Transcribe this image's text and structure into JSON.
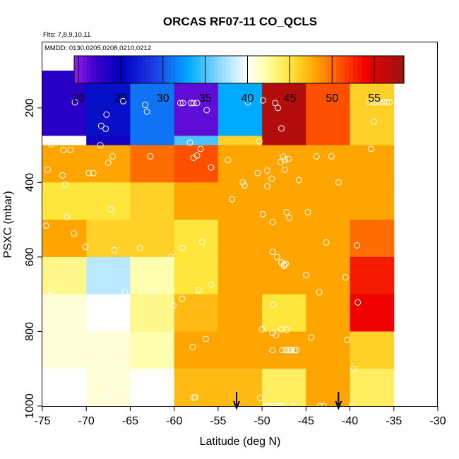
{
  "chart_data": {
    "type": "heatmap",
    "title": "ORCAS RF07-11 CO_QCLS",
    "flights_note": "Flts: 7,8,9,10,11",
    "dates_note": "MMDD: 0130,0205,0208,0210,0212",
    "xlabel": "Latitude (deg N)",
    "ylabel": "PSXC (mbar)",
    "xlim": [
      -75,
      -30
    ],
    "ylim": [
      1000,
      100
    ],
    "x_ticks": [
      "-75",
      "-70",
      "-65",
      "-60",
      "-55",
      "-50",
      "-45",
      "-40",
      "-35",
      "-30"
    ],
    "y_ticks": [
      "200",
      "400",
      "600",
      "800",
      "1000"
    ],
    "colorbar": {
      "range": [
        19.5,
        58.5
      ],
      "ticks": [
        "20",
        "25",
        "30",
        "35",
        "40",
        "45",
        "50",
        "55"
      ]
    },
    "lat_edges": [
      -75,
      -70,
      -65,
      -60,
      -55,
      -50,
      -45,
      -40,
      -35
    ],
    "pressure_bands": [
      {
        "top": 100,
        "bottom": 275,
        "values": [
          23,
          26,
          31,
          21,
          33,
          57,
          51,
          46
        ]
      },
      {
        "top": 275,
        "bottom": 300,
        "values": [
          40,
          24,
          31,
          35,
          46,
          57,
          51,
          46
        ]
      },
      {
        "top": 300,
        "bottom": 400,
        "values": [
          48,
          48,
          50,
          51,
          48,
          48,
          48,
          48
        ]
      },
      {
        "top": 400,
        "bottom": 500,
        "values": [
          45,
          45,
          46,
          48,
          48,
          48,
          48,
          48
        ]
      },
      {
        "top": 500,
        "bottom": 600,
        "values": [
          48,
          46,
          46,
          45,
          48,
          48,
          48,
          50
        ]
      },
      {
        "top": 600,
        "bottom": 700,
        "values": [
          43,
          38,
          42,
          45,
          48,
          48,
          48,
          53
        ]
      },
      {
        "top": 700,
        "bottom": 800,
        "values": [
          41,
          40,
          43,
          47,
          48,
          45,
          48,
          54
        ]
      },
      {
        "top": 800,
        "bottom": 900,
        "values": [
          41,
          41,
          42,
          48,
          48,
          48,
          48,
          46
        ]
      },
      {
        "top": 900,
        "bottom": 1000,
        "values": [
          40,
          41,
          40,
          47,
          47,
          44,
          48,
          44
        ]
      }
    ],
    "blank_cells": [
      {
        "lat_range": [
          -75,
          -60
        ],
        "p_range": [
          975,
          1000
        ]
      },
      {
        "lat_range": [
          -35,
          -30
        ],
        "p_range": [
          100,
          1000
        ]
      }
    ],
    "observations": [
      [
        -71.3,
        185
      ],
      [
        -68.3,
        248
      ],
      [
        -67.8,
        256
      ],
      [
        -67.7,
        218
      ],
      [
        -65.8,
        182
      ],
      [
        -63.3,
        192
      ],
      [
        -63.1,
        210
      ],
      [
        -59.3,
        187
      ],
      [
        -59,
        187
      ],
      [
        -58.1,
        187
      ],
      [
        -57.8,
        187
      ],
      [
        -57.4,
        187
      ],
      [
        -56.3,
        206
      ],
      [
        -51.6,
        185
      ],
      [
        -49.9,
        180
      ],
      [
        -48.5,
        187
      ],
      [
        -48.2,
        200
      ],
      [
        -47.8,
        255
      ],
      [
        -37.3,
        237
      ],
      [
        -37.8,
        185
      ],
      [
        -37.3,
        185
      ],
      [
        -37,
        185
      ],
      [
        -36.6,
        185
      ],
      [
        -36.2,
        185
      ],
      [
        -35.8,
        185
      ],
      [
        -35.5,
        185
      ],
      [
        -68.4,
        300
      ],
      [
        -58.2,
        293
      ],
      [
        -57.4,
        328
      ],
      [
        -57.8,
        334
      ],
      [
        -50.3,
        290
      ],
      [
        -47.9,
        345
      ],
      [
        -47.6,
        331
      ],
      [
        -47.4,
        340
      ],
      [
        -74,
        298
      ],
      [
        -72.6,
        313
      ],
      [
        -71.8,
        313
      ],
      [
        -67,
        330
      ],
      [
        -62.7,
        330
      ],
      [
        -57,
        310
      ],
      [
        -47,
        337
      ],
      [
        -43.8,
        330
      ],
      [
        -42.1,
        330
      ],
      [
        -37.6,
        310
      ],
      [
        -74.4,
        366
      ],
      [
        -72.7,
        381
      ],
      [
        -69.7,
        375
      ],
      [
        -69.2,
        375
      ],
      [
        -67.5,
        347
      ],
      [
        -72.4,
        406
      ],
      [
        -55.8,
        360
      ],
      [
        -53.9,
        340
      ],
      [
        -50.5,
        375
      ],
      [
        -49.4,
        368
      ],
      [
        -48.9,
        390
      ],
      [
        -47.4,
        366
      ],
      [
        -45.8,
        394
      ],
      [
        -41.3,
        400
      ],
      [
        -74.6,
        516
      ],
      [
        -72.2,
        492
      ],
      [
        -71.4,
        537
      ],
      [
        -67.2,
        472
      ],
      [
        -52.2,
        400
      ],
      [
        -52,
        408
      ],
      [
        -53.4,
        445
      ],
      [
        -49.9,
        485
      ],
      [
        -49.4,
        410
      ],
      [
        -47.2,
        480
      ],
      [
        -46.9,
        495
      ],
      [
        -48.8,
        506
      ],
      [
        -44.8,
        480
      ],
      [
        -70.1,
        573
      ],
      [
        -66.8,
        582
      ],
      [
        -63.9,
        576
      ],
      [
        -60.4,
        600
      ],
      [
        -59.1,
        576
      ],
      [
        -56.8,
        560
      ],
      [
        -48.8,
        586
      ],
      [
        -47.8,
        615
      ],
      [
        -47.3,
        618
      ],
      [
        -47.5,
        624
      ],
      [
        -42.7,
        561
      ],
      [
        -39.2,
        569
      ],
      [
        -74.1,
        690
      ],
      [
        -65.6,
        694
      ],
      [
        -62.4,
        690
      ],
      [
        -57.2,
        690
      ],
      [
        -55.8,
        674
      ],
      [
        -48.3,
        600
      ],
      [
        -47.5,
        620
      ],
      [
        -45,
        648
      ],
      [
        -43.5,
        695
      ],
      [
        -40.5,
        655
      ],
      [
        -60.1,
        730
      ],
      [
        -59.1,
        712
      ],
      [
        -48.7,
        728
      ],
      [
        -39.1,
        722
      ],
      [
        -67.1,
        768
      ],
      [
        -57.9,
        842
      ],
      [
        -56.4,
        820
      ],
      [
        -50,
        794
      ],
      [
        -48.8,
        804
      ],
      [
        -47.8,
        794
      ],
      [
        -47.2,
        795
      ],
      [
        -48.4,
        810
      ],
      [
        -48.8,
        850
      ],
      [
        -47.7,
        850
      ],
      [
        -47.3,
        850
      ],
      [
        -47,
        850
      ],
      [
        -46.8,
        850
      ],
      [
        -46.6,
        850
      ],
      [
        -46.3,
        850
      ],
      [
        -46.1,
        850
      ],
      [
        -44.4,
        816
      ],
      [
        -40.3,
        822
      ],
      [
        -39.6,
        900
      ],
      [
        -74.8,
        958
      ],
      [
        -72.7,
        960
      ],
      [
        -72.4,
        960
      ],
      [
        -72.2,
        960
      ],
      [
        -71.9,
        960
      ],
      [
        -71.2,
        960
      ],
      [
        -67.4,
        972
      ],
      [
        -65.2,
        960
      ],
      [
        -64.7,
        960
      ],
      [
        -63.9,
        960
      ],
      [
        -63.3,
        960
      ],
      [
        -62.3,
        962
      ],
      [
        -61.7,
        962
      ],
      [
        -57.8,
        977
      ],
      [
        -57.6,
        977
      ],
      [
        -50.2,
        978
      ],
      [
        -49.5,
        1000
      ],
      [
        -49.3,
        1000
      ],
      [
        -48.8,
        1000
      ],
      [
        -48.3,
        1000
      ],
      [
        -48,
        1000
      ],
      [
        -47.6,
        1000
      ],
      [
        -46.5,
        1000
      ],
      [
        -43.4,
        1000
      ],
      [
        -43,
        1000
      ],
      [
        -39.8,
        1000
      ]
    ],
    "arrows_at_lat": [
      -52.9,
      -41.3
    ]
  }
}
